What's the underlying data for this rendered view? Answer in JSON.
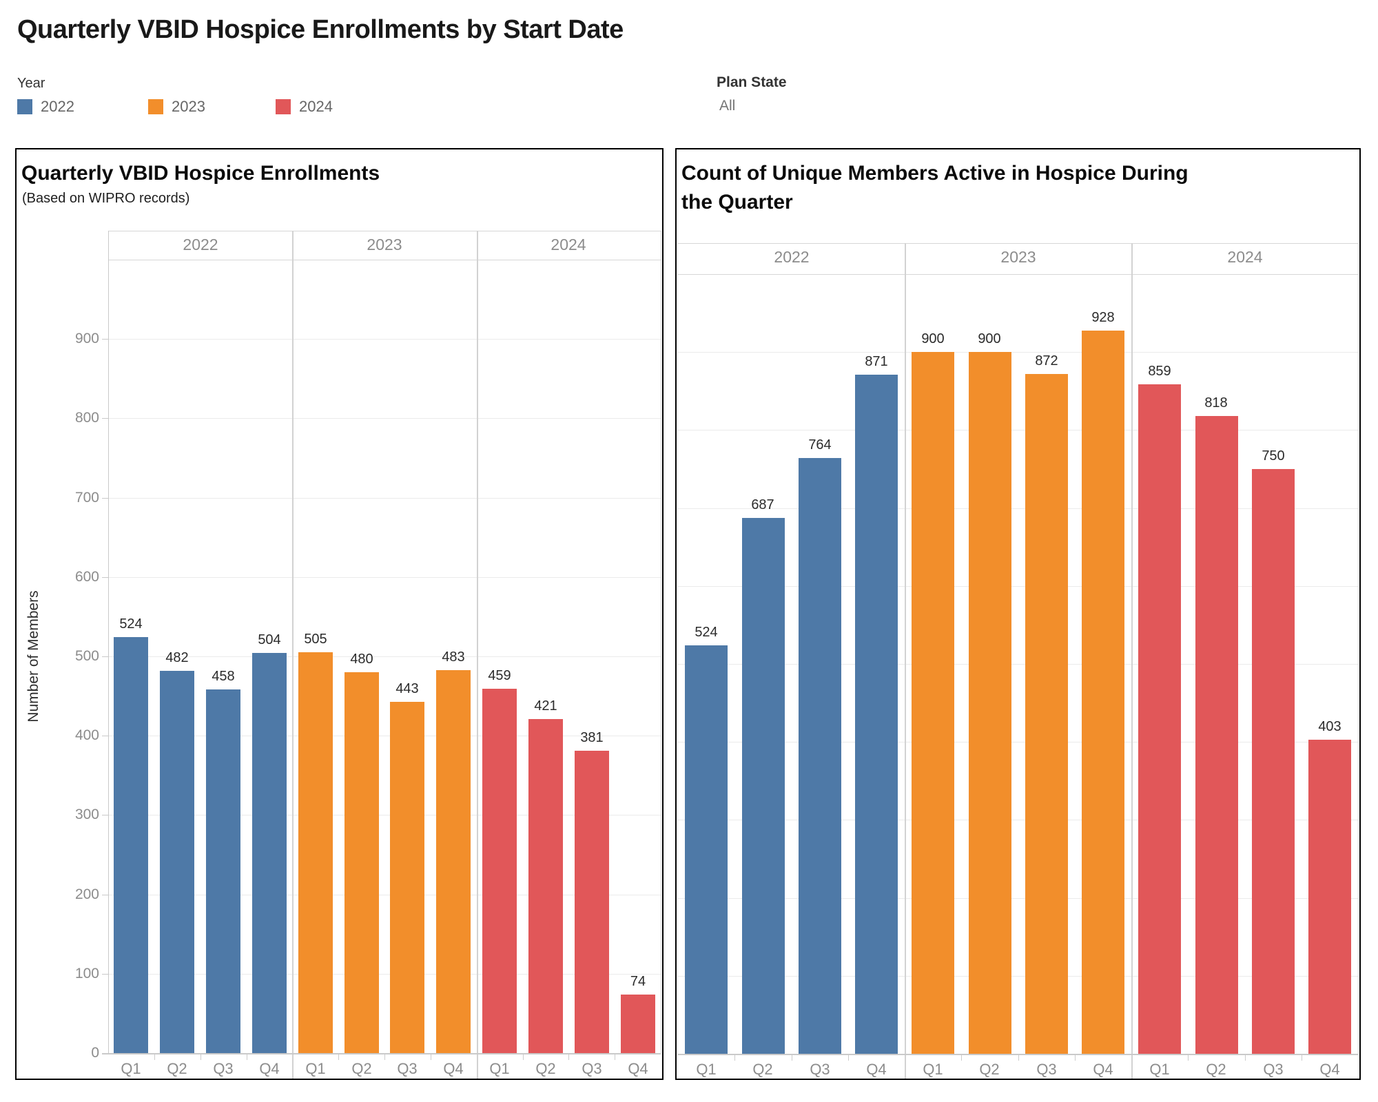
{
  "page_title": "Quarterly VBID Hospice Enrollments by Start Date",
  "legend": {
    "title": "Year",
    "items": [
      {
        "label": "2022",
        "color": "#4e79a7"
      },
      {
        "label": "2023",
        "color": "#f28e2b"
      },
      {
        "label": "2024",
        "color": "#e15759"
      }
    ]
  },
  "filter": {
    "label": "Plan State",
    "value": "All"
  },
  "chart_data": [
    {
      "type": "bar",
      "title": "Quarterly VBID Hospice Enrollments",
      "subtitle": "(Based on WIPRO records)",
      "ylabel": "Number of Members",
      "ylim": [
        0,
        1000
      ],
      "ytick_step": 100,
      "yticks": [
        0,
        100,
        200,
        300,
        400,
        500,
        600,
        700,
        800,
        900
      ],
      "grid": true,
      "show_y_axis": true,
      "bar_value_labels": true,
      "legend_position": "top-of-dashboard",
      "quarters": [
        "Q1",
        "Q2",
        "Q3",
        "Q4"
      ],
      "year_groups": [
        "2022",
        "2023",
        "2024"
      ],
      "series": [
        {
          "name": "2022",
          "color": "#4e79a7",
          "values": [
            524,
            482,
            458,
            504
          ]
        },
        {
          "name": "2023",
          "color": "#f28e2b",
          "values": [
            505,
            480,
            443,
            483
          ]
        },
        {
          "name": "2024",
          "color": "#e15759",
          "values": [
            459,
            421,
            381,
            74
          ]
        }
      ]
    },
    {
      "type": "bar",
      "title": "Count of Unique Members Active in Hospice During\nthe Quarter",
      "subtitle": "",
      "ylabel": "",
      "ylim": [
        0,
        1000
      ],
      "ytick_step": 100,
      "yticks": [],
      "grid": true,
      "show_y_axis": false,
      "bar_value_labels": true,
      "legend_position": "top-of-dashboard",
      "quarters": [
        "Q1",
        "Q2",
        "Q3",
        "Q4"
      ],
      "year_groups": [
        "2022",
        "2023",
        "2024"
      ],
      "series": [
        {
          "name": "2022",
          "color": "#4e79a7",
          "values": [
            524,
            687,
            764,
            871
          ]
        },
        {
          "name": "2023",
          "color": "#f28e2b",
          "values": [
            900,
            900,
            872,
            928
          ]
        },
        {
          "name": "2024",
          "color": "#e15759",
          "values": [
            859,
            818,
            750,
            403
          ]
        }
      ]
    }
  ]
}
